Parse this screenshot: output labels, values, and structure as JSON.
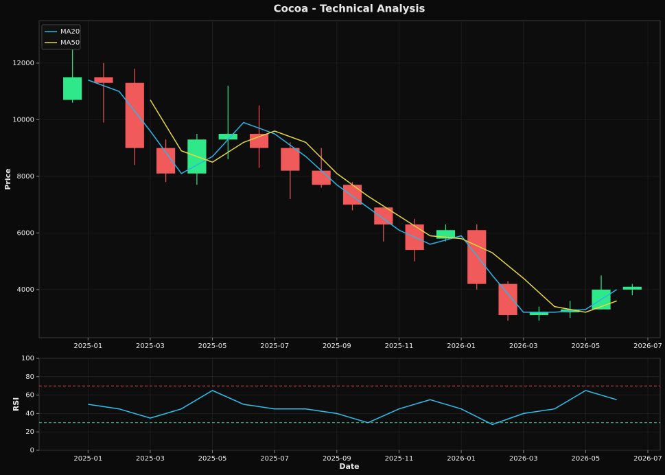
{
  "chart_data": [
    {
      "type": "candlestick",
      "title": "Cocoa - Technical Analysis",
      "y_label": "Price",
      "x": [
        "2024-12",
        "2025-01",
        "2025-02",
        "2025-03",
        "2025-04",
        "2025-05",
        "2025-06",
        "2025-07",
        "2025-08",
        "2025-09",
        "2025-10",
        "2025-11",
        "2025-12",
        "2026-01",
        "2026-02",
        "2026-03",
        "2026-04",
        "2026-05",
        "2026-06"
      ],
      "open": [
        10700,
        11500,
        11300,
        9000,
        8100,
        9300,
        9500,
        9000,
        8200,
        7700,
        6900,
        6300,
        5800,
        6100,
        4200,
        3100,
        3200,
        3300,
        4000
      ],
      "high": [
        12700,
        12000,
        11800,
        9300,
        9500,
        11200,
        10500,
        9200,
        9000,
        7800,
        6900,
        6500,
        6300,
        6300,
        4300,
        3400,
        3600,
        4500,
        4200
      ],
      "low": [
        10600,
        9900,
        8400,
        7800,
        7700,
        8600,
        8300,
        7200,
        7600,
        6800,
        5700,
        5000,
        5700,
        4000,
        2900,
        2900,
        3000,
        3300,
        3800
      ],
      "close": [
        11500,
        11300,
        9000,
        8100,
        9300,
        9500,
        9000,
        8200,
        7700,
        7000,
        6300,
        5400,
        6100,
        4200,
        3100,
        3200,
        3300,
        4000,
        4100
      ],
      "up_color": "#2ee88a",
      "down_color": "#f05a5a",
      "series": [
        {
          "name": "MA20",
          "color": "#29b6e8",
          "values": [
            null,
            11400,
            11000,
            9600,
            8100,
            8700,
            9900,
            9500,
            8700,
            7700,
            6900,
            6100,
            5600,
            5900,
            4500,
            3200,
            3200,
            3300,
            4000
          ]
        },
        {
          "name": "MA50",
          "color": "#e6d83a",
          "values": [
            null,
            null,
            null,
            10700,
            8900,
            8500,
            9200,
            9600,
            9200,
            8100,
            7300,
            6600,
            5900,
            5800,
            5300,
            4400,
            3400,
            3200,
            3600
          ]
        }
      ],
      "legend": "upper left",
      "grid": true,
      "xlim": [
        "2024-12",
        "2026-07"
      ],
      "xticks": [
        "2025-01",
        "2025-03",
        "2025-05",
        "2025-07",
        "2025-09",
        "2025-11",
        "2026-01",
        "2026-03",
        "2026-05",
        "2026-07"
      ],
      "ylim": [
        2300,
        13500
      ],
      "yticks": [
        4000,
        6000,
        8000,
        10000,
        12000
      ]
    },
    {
      "type": "line",
      "y_label": "RSI",
      "x_label": "Date",
      "x": [
        "2024-12",
        "2025-01",
        "2025-02",
        "2025-03",
        "2025-04",
        "2025-05",
        "2025-06",
        "2025-07",
        "2025-08",
        "2025-09",
        "2025-10",
        "2025-11",
        "2025-12",
        "2026-01",
        "2026-02",
        "2026-03",
        "2026-04",
        "2026-05",
        "2026-06"
      ],
      "values": [
        null,
        50,
        45,
        35,
        45,
        65,
        50,
        45,
        45,
        40,
        30,
        45,
        55,
        45,
        28,
        40,
        45,
        65,
        55
      ],
      "color": "#29c4f0",
      "hlines": [
        {
          "value": 70,
          "color": "#e04848"
        },
        {
          "value": 30,
          "color": "#2ed08a"
        }
      ],
      "grid": true,
      "xlim": [
        "2024-12",
        "2026-07"
      ],
      "xticks": [
        "2025-01",
        "2025-03",
        "2025-05",
        "2025-07",
        "2025-09",
        "2025-11",
        "2026-01",
        "2026-03",
        "2026-05",
        "2026-07"
      ],
      "ylim": [
        0,
        100
      ],
      "yticks": [
        0,
        20,
        40,
        60,
        80,
        100
      ]
    }
  ]
}
